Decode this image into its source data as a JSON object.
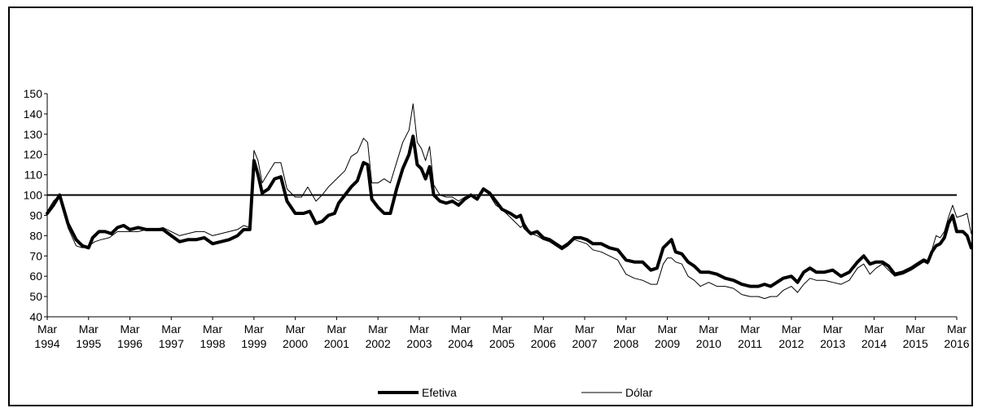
{
  "chart_data": {
    "type": "line",
    "title": "",
    "xlabel": "",
    "ylabel": "",
    "ylim": [
      40,
      150
    ],
    "yticks": [
      40,
      50,
      60,
      70,
      80,
      90,
      100,
      110,
      120,
      130,
      140,
      150
    ],
    "reference_line": 100,
    "grid": false,
    "legend_position": "bottom",
    "xticks": [
      {
        "month": "Mar",
        "year": "1994"
      },
      {
        "month": "Mar",
        "year": "1995"
      },
      {
        "month": "Mar",
        "year": "1996"
      },
      {
        "month": "Mar",
        "year": "1997"
      },
      {
        "month": "Mar",
        "year": "1998"
      },
      {
        "month": "Mar",
        "year": "1999"
      },
      {
        "month": "Mar",
        "year": "2000"
      },
      {
        "month": "Mar",
        "year": "2001"
      },
      {
        "month": "Mar",
        "year": "2002"
      },
      {
        "month": "Mar",
        "year": "2003"
      },
      {
        "month": "Mar",
        "year": "2004"
      },
      {
        "month": "Mar",
        "year": "2005"
      },
      {
        "month": "Mar",
        "year": "2006"
      },
      {
        "month": "Mar",
        "year": "2007"
      },
      {
        "month": "Mar",
        "year": "2008"
      },
      {
        "month": "Mar",
        "year": "2009"
      },
      {
        "month": "Mar",
        "year": "2010"
      },
      {
        "month": "Mar",
        "year": "2011"
      },
      {
        "month": "Mar",
        "year": "2012"
      },
      {
        "month": "Mar",
        "year": "2013"
      },
      {
        "month": "Mar",
        "year": "2014"
      },
      {
        "month": "Mar",
        "year": "2015"
      },
      {
        "month": "Mar",
        "year": "2016"
      }
    ],
    "series": [
      {
        "name": "Efetiva",
        "color": "#000000",
        "points": [
          [
            1994.0,
            91
          ],
          [
            1994.15,
            95
          ],
          [
            1994.3,
            100
          ],
          [
            1994.5,
            86
          ],
          [
            1994.7,
            78
          ],
          [
            1994.85,
            75
          ],
          [
            1995.0,
            74
          ],
          [
            1995.1,
            79
          ],
          [
            1995.25,
            82
          ],
          [
            1995.4,
            82
          ],
          [
            1995.55,
            81
          ],
          [
            1995.7,
            84
          ],
          [
            1995.85,
            85
          ],
          [
            1996.0,
            83
          ],
          [
            1996.2,
            84
          ],
          [
            1996.4,
            83
          ],
          [
            1996.6,
            83
          ],
          [
            1996.8,
            83
          ],
          [
            1997.0,
            80
          ],
          [
            1997.2,
            77
          ],
          [
            1997.4,
            78
          ],
          [
            1997.6,
            78
          ],
          [
            1997.8,
            79
          ],
          [
            1998.0,
            76
          ],
          [
            1998.2,
            77
          ],
          [
            1998.4,
            78
          ],
          [
            1998.6,
            80
          ],
          [
            1998.75,
            83
          ],
          [
            1998.9,
            83
          ],
          [
            1999.0,
            117
          ],
          [
            1999.1,
            110
          ],
          [
            1999.2,
            101
          ],
          [
            1999.35,
            103
          ],
          [
            1999.5,
            108
          ],
          [
            1999.65,
            109
          ],
          [
            1999.8,
            97
          ],
          [
            2000.0,
            91
          ],
          [
            2000.2,
            91
          ],
          [
            2000.35,
            92
          ],
          [
            2000.5,
            86
          ],
          [
            2000.65,
            87
          ],
          [
            2000.8,
            90
          ],
          [
            2000.95,
            91
          ],
          [
            2001.05,
            96
          ],
          [
            2001.2,
            100
          ],
          [
            2001.35,
            104
          ],
          [
            2001.5,
            107
          ],
          [
            2001.65,
            116
          ],
          [
            2001.75,
            115
          ],
          [
            2001.85,
            98
          ],
          [
            2002.0,
            94
          ],
          [
            2002.15,
            91
          ],
          [
            2002.3,
            91
          ],
          [
            2002.45,
            103
          ],
          [
            2002.6,
            113
          ],
          [
            2002.75,
            120
          ],
          [
            2002.85,
            129
          ],
          [
            2002.95,
            115
          ],
          [
            2003.05,
            113
          ],
          [
            2003.15,
            108
          ],
          [
            2003.25,
            114
          ],
          [
            2003.35,
            100
          ],
          [
            2003.5,
            97
          ],
          [
            2003.65,
            96
          ],
          [
            2003.8,
            97
          ],
          [
            2003.95,
            95
          ],
          [
            2004.1,
            98
          ],
          [
            2004.25,
            100
          ],
          [
            2004.4,
            98
          ],
          [
            2004.55,
            103
          ],
          [
            2004.7,
            101
          ],
          [
            2004.85,
            97
          ],
          [
            2005.0,
            93
          ],
          [
            2005.2,
            91
          ],
          [
            2005.35,
            89
          ],
          [
            2005.45,
            90
          ],
          [
            2005.55,
            84
          ],
          [
            2005.7,
            81
          ],
          [
            2005.85,
            82
          ],
          [
            2006.0,
            79
          ],
          [
            2006.15,
            78
          ],
          [
            2006.3,
            76
          ],
          [
            2006.45,
            74
          ],
          [
            2006.6,
            76
          ],
          [
            2006.75,
            79
          ],
          [
            2006.9,
            79
          ],
          [
            2007.05,
            78
          ],
          [
            2007.2,
            76
          ],
          [
            2007.4,
            76
          ],
          [
            2007.6,
            74
          ],
          [
            2007.8,
            73
          ],
          [
            2008.0,
            68
          ],
          [
            2008.2,
            67
          ],
          [
            2008.4,
            67
          ],
          [
            2008.6,
            63
          ],
          [
            2008.75,
            64
          ],
          [
            2008.9,
            74
          ],
          [
            2009.0,
            76
          ],
          [
            2009.1,
            78
          ],
          [
            2009.2,
            72
          ],
          [
            2009.35,
            71
          ],
          [
            2009.5,
            67
          ],
          [
            2009.65,
            65
          ],
          [
            2009.8,
            62
          ],
          [
            2010.0,
            62
          ],
          [
            2010.2,
            61
          ],
          [
            2010.4,
            59
          ],
          [
            2010.6,
            58
          ],
          [
            2010.8,
            56
          ],
          [
            2011.0,
            55
          ],
          [
            2011.2,
            55
          ],
          [
            2011.35,
            56
          ],
          [
            2011.5,
            55
          ],
          [
            2011.65,
            57
          ],
          [
            2011.8,
            59
          ],
          [
            2012.0,
            60
          ],
          [
            2012.15,
            57
          ],
          [
            2012.3,
            62
          ],
          [
            2012.45,
            64
          ],
          [
            2012.6,
            62
          ],
          [
            2012.8,
            62
          ],
          [
            2013.0,
            63
          ],
          [
            2013.2,
            60
          ],
          [
            2013.4,
            62
          ],
          [
            2013.6,
            67
          ],
          [
            2013.75,
            70
          ],
          [
            2013.9,
            66
          ],
          [
            2014.05,
            67
          ],
          [
            2014.2,
            67
          ],
          [
            2014.35,
            65
          ],
          [
            2014.5,
            61
          ],
          [
            2014.7,
            62
          ],
          [
            2014.9,
            64
          ],
          [
            2015.05,
            66
          ],
          [
            2015.2,
            68
          ],
          [
            2015.3,
            67
          ],
          [
            2015.4,
            72
          ],
          [
            2015.5,
            75
          ],
          [
            2015.6,
            76
          ],
          [
            2015.7,
            79
          ],
          [
            2015.8,
            86
          ],
          [
            2015.9,
            90
          ],
          [
            2016.0,
            82
          ],
          [
            2016.15,
            82
          ],
          [
            2016.25,
            80
          ],
          [
            2016.35,
            74
          ]
        ]
      },
      {
        "name": "Dólar",
        "color": "#000000",
        "points": [
          [
            1994.0,
            92
          ],
          [
            1994.15,
            97
          ],
          [
            1994.3,
            100
          ],
          [
            1994.5,
            84
          ],
          [
            1994.7,
            75
          ],
          [
            1994.85,
            74
          ],
          [
            1995.0,
            75
          ],
          [
            1995.15,
            77
          ],
          [
            1995.3,
            78
          ],
          [
            1995.5,
            79
          ],
          [
            1995.7,
            82
          ],
          [
            1995.85,
            82
          ],
          [
            1996.0,
            82
          ],
          [
            1996.2,
            82
          ],
          [
            1996.4,
            83
          ],
          [
            1996.6,
            83
          ],
          [
            1996.8,
            84
          ],
          [
            1997.0,
            82
          ],
          [
            1997.2,
            80
          ],
          [
            1997.4,
            81
          ],
          [
            1997.6,
            82
          ],
          [
            1997.8,
            82
          ],
          [
            1998.0,
            80
          ],
          [
            1998.2,
            81
          ],
          [
            1998.4,
            82
          ],
          [
            1998.6,
            83
          ],
          [
            1998.75,
            85
          ],
          [
            1998.9,
            84
          ],
          [
            1999.0,
            122
          ],
          [
            1999.1,
            117
          ],
          [
            1999.2,
            106
          ],
          [
            1999.35,
            111
          ],
          [
            1999.5,
            116
          ],
          [
            1999.65,
            116
          ],
          [
            1999.8,
            103
          ],
          [
            2000.0,
            99
          ],
          [
            2000.15,
            99
          ],
          [
            2000.3,
            104
          ],
          [
            2000.5,
            97
          ],
          [
            2000.65,
            100
          ],
          [
            2000.8,
            104
          ],
          [
            2000.95,
            107
          ],
          [
            2001.05,
            109
          ],
          [
            2001.2,
            112
          ],
          [
            2001.35,
            119
          ],
          [
            2001.5,
            121
          ],
          [
            2001.65,
            128
          ],
          [
            2001.75,
            126
          ],
          [
            2001.85,
            106
          ],
          [
            2002.0,
            106
          ],
          [
            2002.15,
            108
          ],
          [
            2002.3,
            106
          ],
          [
            2002.45,
            116
          ],
          [
            2002.6,
            126
          ],
          [
            2002.75,
            132
          ],
          [
            2002.85,
            145
          ],
          [
            2002.95,
            126
          ],
          [
            2003.05,
            123
          ],
          [
            2003.15,
            117
          ],
          [
            2003.25,
            124
          ],
          [
            2003.35,
            105
          ],
          [
            2003.5,
            100
          ],
          [
            2003.65,
            99
          ],
          [
            2003.8,
            99
          ],
          [
            2003.95,
            97
          ],
          [
            2004.1,
            99
          ],
          [
            2004.25,
            100
          ],
          [
            2004.4,
            98
          ],
          [
            2004.55,
            103
          ],
          [
            2004.7,
            100
          ],
          [
            2004.85,
            95
          ],
          [
            2005.0,
            93
          ],
          [
            2005.2,
            89
          ],
          [
            2005.35,
            86
          ],
          [
            2005.45,
            84
          ],
          [
            2005.55,
            86
          ],
          [
            2005.7,
            81
          ],
          [
            2005.85,
            80
          ],
          [
            2006.0,
            78
          ],
          [
            2006.15,
            77
          ],
          [
            2006.3,
            75
          ],
          [
            2006.45,
            73
          ],
          [
            2006.6,
            75
          ],
          [
            2006.75,
            78
          ],
          [
            2006.9,
            77
          ],
          [
            2007.05,
            76
          ],
          [
            2007.2,
            73
          ],
          [
            2007.4,
            72
          ],
          [
            2007.6,
            70
          ],
          [
            2007.8,
            68
          ],
          [
            2008.0,
            61
          ],
          [
            2008.2,
            59
          ],
          [
            2008.4,
            58
          ],
          [
            2008.6,
            56
          ],
          [
            2008.75,
            56
          ],
          [
            2008.9,
            66
          ],
          [
            2009.0,
            69
          ],
          [
            2009.1,
            69
          ],
          [
            2009.2,
            67
          ],
          [
            2009.35,
            66
          ],
          [
            2009.5,
            60
          ],
          [
            2009.65,
            58
          ],
          [
            2009.8,
            55
          ],
          [
            2010.0,
            57
          ],
          [
            2010.2,
            55
          ],
          [
            2010.4,
            55
          ],
          [
            2010.6,
            54
          ],
          [
            2010.8,
            51
          ],
          [
            2011.0,
            50
          ],
          [
            2011.2,
            50
          ],
          [
            2011.35,
            49
          ],
          [
            2011.5,
            50
          ],
          [
            2011.65,
            50
          ],
          [
            2011.8,
            53
          ],
          [
            2012.0,
            55
          ],
          [
            2012.15,
            52
          ],
          [
            2012.3,
            56
          ],
          [
            2012.45,
            59
          ],
          [
            2012.6,
            58
          ],
          [
            2012.8,
            58
          ],
          [
            2013.0,
            57
          ],
          [
            2013.2,
            56
          ],
          [
            2013.4,
            58
          ],
          [
            2013.6,
            64
          ],
          [
            2013.75,
            66
          ],
          [
            2013.9,
            61
          ],
          [
            2014.05,
            64
          ],
          [
            2014.2,
            66
          ],
          [
            2014.35,
            63
          ],
          [
            2014.5,
            60
          ],
          [
            2014.7,
            61
          ],
          [
            2014.9,
            63
          ],
          [
            2015.05,
            65
          ],
          [
            2015.2,
            67
          ],
          [
            2015.3,
            66
          ],
          [
            2015.4,
            73
          ],
          [
            2015.5,
            80
          ],
          [
            2015.6,
            79
          ],
          [
            2015.7,
            82
          ],
          [
            2015.8,
            89
          ],
          [
            2015.9,
            95
          ],
          [
            2016.0,
            89
          ],
          [
            2016.15,
            90
          ],
          [
            2016.25,
            91
          ],
          [
            2016.35,
            81
          ]
        ]
      }
    ]
  }
}
